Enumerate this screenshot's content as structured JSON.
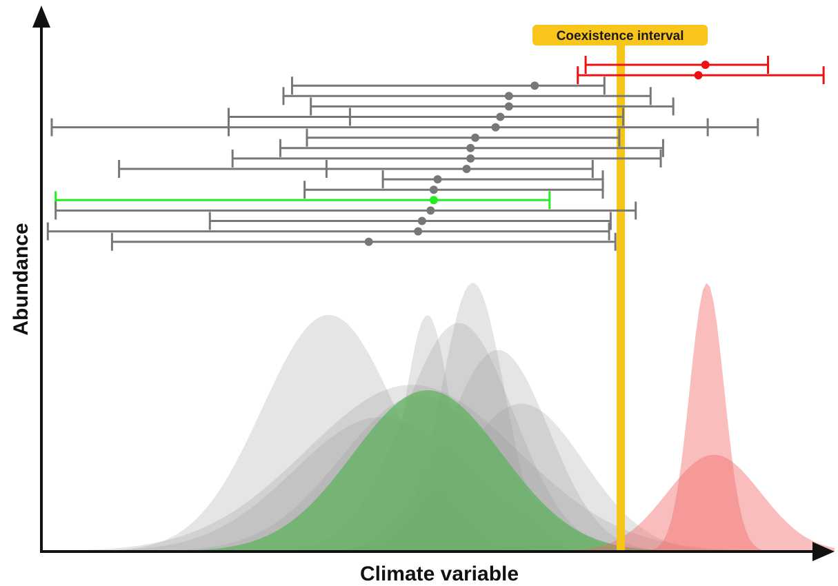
{
  "x_axis_label": "Climate variable",
  "y_axis_label": "Abundance",
  "coexistence_label": "Coexistence interval",
  "colors": {
    "axis": "#111111",
    "interval": "#777777",
    "highlight_green": "#22ee22",
    "highlight_red": "#ee1111",
    "coexistence": "#f5c518",
    "coexistence_label_bg": "#f9c51a",
    "curve_grey": "#9a9a9a",
    "curve_green": "#5fb35f",
    "curve_red": "#f26d6d"
  },
  "chart_data": {
    "type": "diagram",
    "x_range": [
      0,
      1
    ],
    "coexistence_x": 0.727,
    "intervals": [
      {
        "color": "red",
        "outer": [
          0.682,
          0.915
        ],
        "inner": [
          0.682,
          0.915
        ],
        "mid": 0.835
      },
      {
        "color": "red",
        "outer": [
          0.672,
          0.986
        ],
        "inner": [
          0.672,
          0.986
        ],
        "mid": 0.826
      },
      {
        "color": "grey",
        "outer": [
          0.307,
          0.706
        ],
        "inner": [
          0.307,
          0.706
        ],
        "mid": 0.617
      },
      {
        "color": "grey",
        "outer": [
          0.296,
          0.765
        ],
        "inner": [
          0.296,
          0.765
        ],
        "mid": 0.584
      },
      {
        "color": "grey",
        "outer": [
          0.331,
          0.794
        ],
        "inner": [
          0.331,
          0.794
        ],
        "mid": 0.584
      },
      {
        "color": "grey",
        "outer": [
          0.226,
          0.73
        ],
        "inner": [
          0.381,
          0.73
        ],
        "mid": 0.573
      },
      {
        "color": "grey",
        "outer": [
          0.0,
          0.902
        ],
        "inner": [
          0.226,
          0.838
        ],
        "mid": 0.567
      },
      {
        "color": "grey",
        "outer": [
          0.326,
          0.725
        ],
        "inner": [
          0.326,
          0.725
        ],
        "mid": 0.541
      },
      {
        "color": "grey",
        "outer": [
          0.292,
          0.781
        ],
        "inner": [
          0.292,
          0.781
        ],
        "mid": 0.535
      },
      {
        "color": "grey",
        "outer": [
          0.231,
          0.778
        ],
        "inner": [
          0.231,
          0.778
        ],
        "mid": 0.535
      },
      {
        "color": "grey",
        "outer": [
          0.086,
          0.691
        ],
        "inner": [
          0.351,
          0.691
        ],
        "mid": 0.53
      },
      {
        "color": "grey",
        "outer": [
          0.423,
          0.704
        ],
        "inner": [
          0.423,
          0.704
        ],
        "mid": 0.493
      },
      {
        "color": "grey",
        "outer": [
          0.323,
          0.704
        ],
        "inner": [
          0.323,
          0.704
        ],
        "mid": 0.488
      },
      {
        "color": "green",
        "outer": [
          0.005,
          0.636
        ],
        "inner": [
          0.005,
          0.636
        ],
        "mid": 0.488
      },
      {
        "color": "grey",
        "outer": [
          0.005,
          0.746
        ],
        "inner": [
          0.005,
          0.746
        ],
        "mid": 0.484
      },
      {
        "color": "grey",
        "outer": [
          0.202,
          0.714
        ],
        "inner": [
          0.202,
          0.714
        ],
        "mid": 0.473
      },
      {
        "color": "grey",
        "outer": [
          -0.005,
          0.712
        ],
        "inner": [
          -0.005,
          0.712
        ],
        "mid": 0.468
      },
      {
        "color": "grey",
        "outer": [
          0.077,
          0.72
        ],
        "inner": [
          0.077,
          0.72
        ],
        "mid": 0.405
      }
    ],
    "curves": [
      {
        "color": "grey",
        "mu": 0.354,
        "sigma": 0.085,
        "amp": 0.88
      },
      {
        "color": "grey",
        "mu": 0.46,
        "sigma": 0.135,
        "amp": 0.62
      },
      {
        "color": "grey",
        "mu": 0.48,
        "sigma": 0.03,
        "amp": 0.88
      },
      {
        "color": "grey",
        "mu": 0.538,
        "sigma": 0.04,
        "amp": 1.0
      },
      {
        "color": "grey",
        "mu": 0.52,
        "sigma": 0.07,
        "amp": 0.85
      },
      {
        "color": "grey",
        "mu": 0.57,
        "sigma": 0.065,
        "amp": 0.75
      },
      {
        "color": "grey",
        "mu": 0.47,
        "sigma": 0.1,
        "amp": 0.58
      },
      {
        "color": "grey",
        "mu": 0.42,
        "sigma": 0.11,
        "amp": 0.5
      },
      {
        "color": "grey",
        "mu": 0.6,
        "sigma": 0.08,
        "amp": 0.55
      },
      {
        "color": "green",
        "mu": 0.48,
        "sigma": 0.095,
        "amp": 0.6
      },
      {
        "color": "red",
        "mu": 0.837,
        "sigma": 0.022,
        "amp": 1.0
      },
      {
        "color": "red",
        "mu": 0.846,
        "sigma": 0.06,
        "amp": 0.36
      }
    ]
  }
}
